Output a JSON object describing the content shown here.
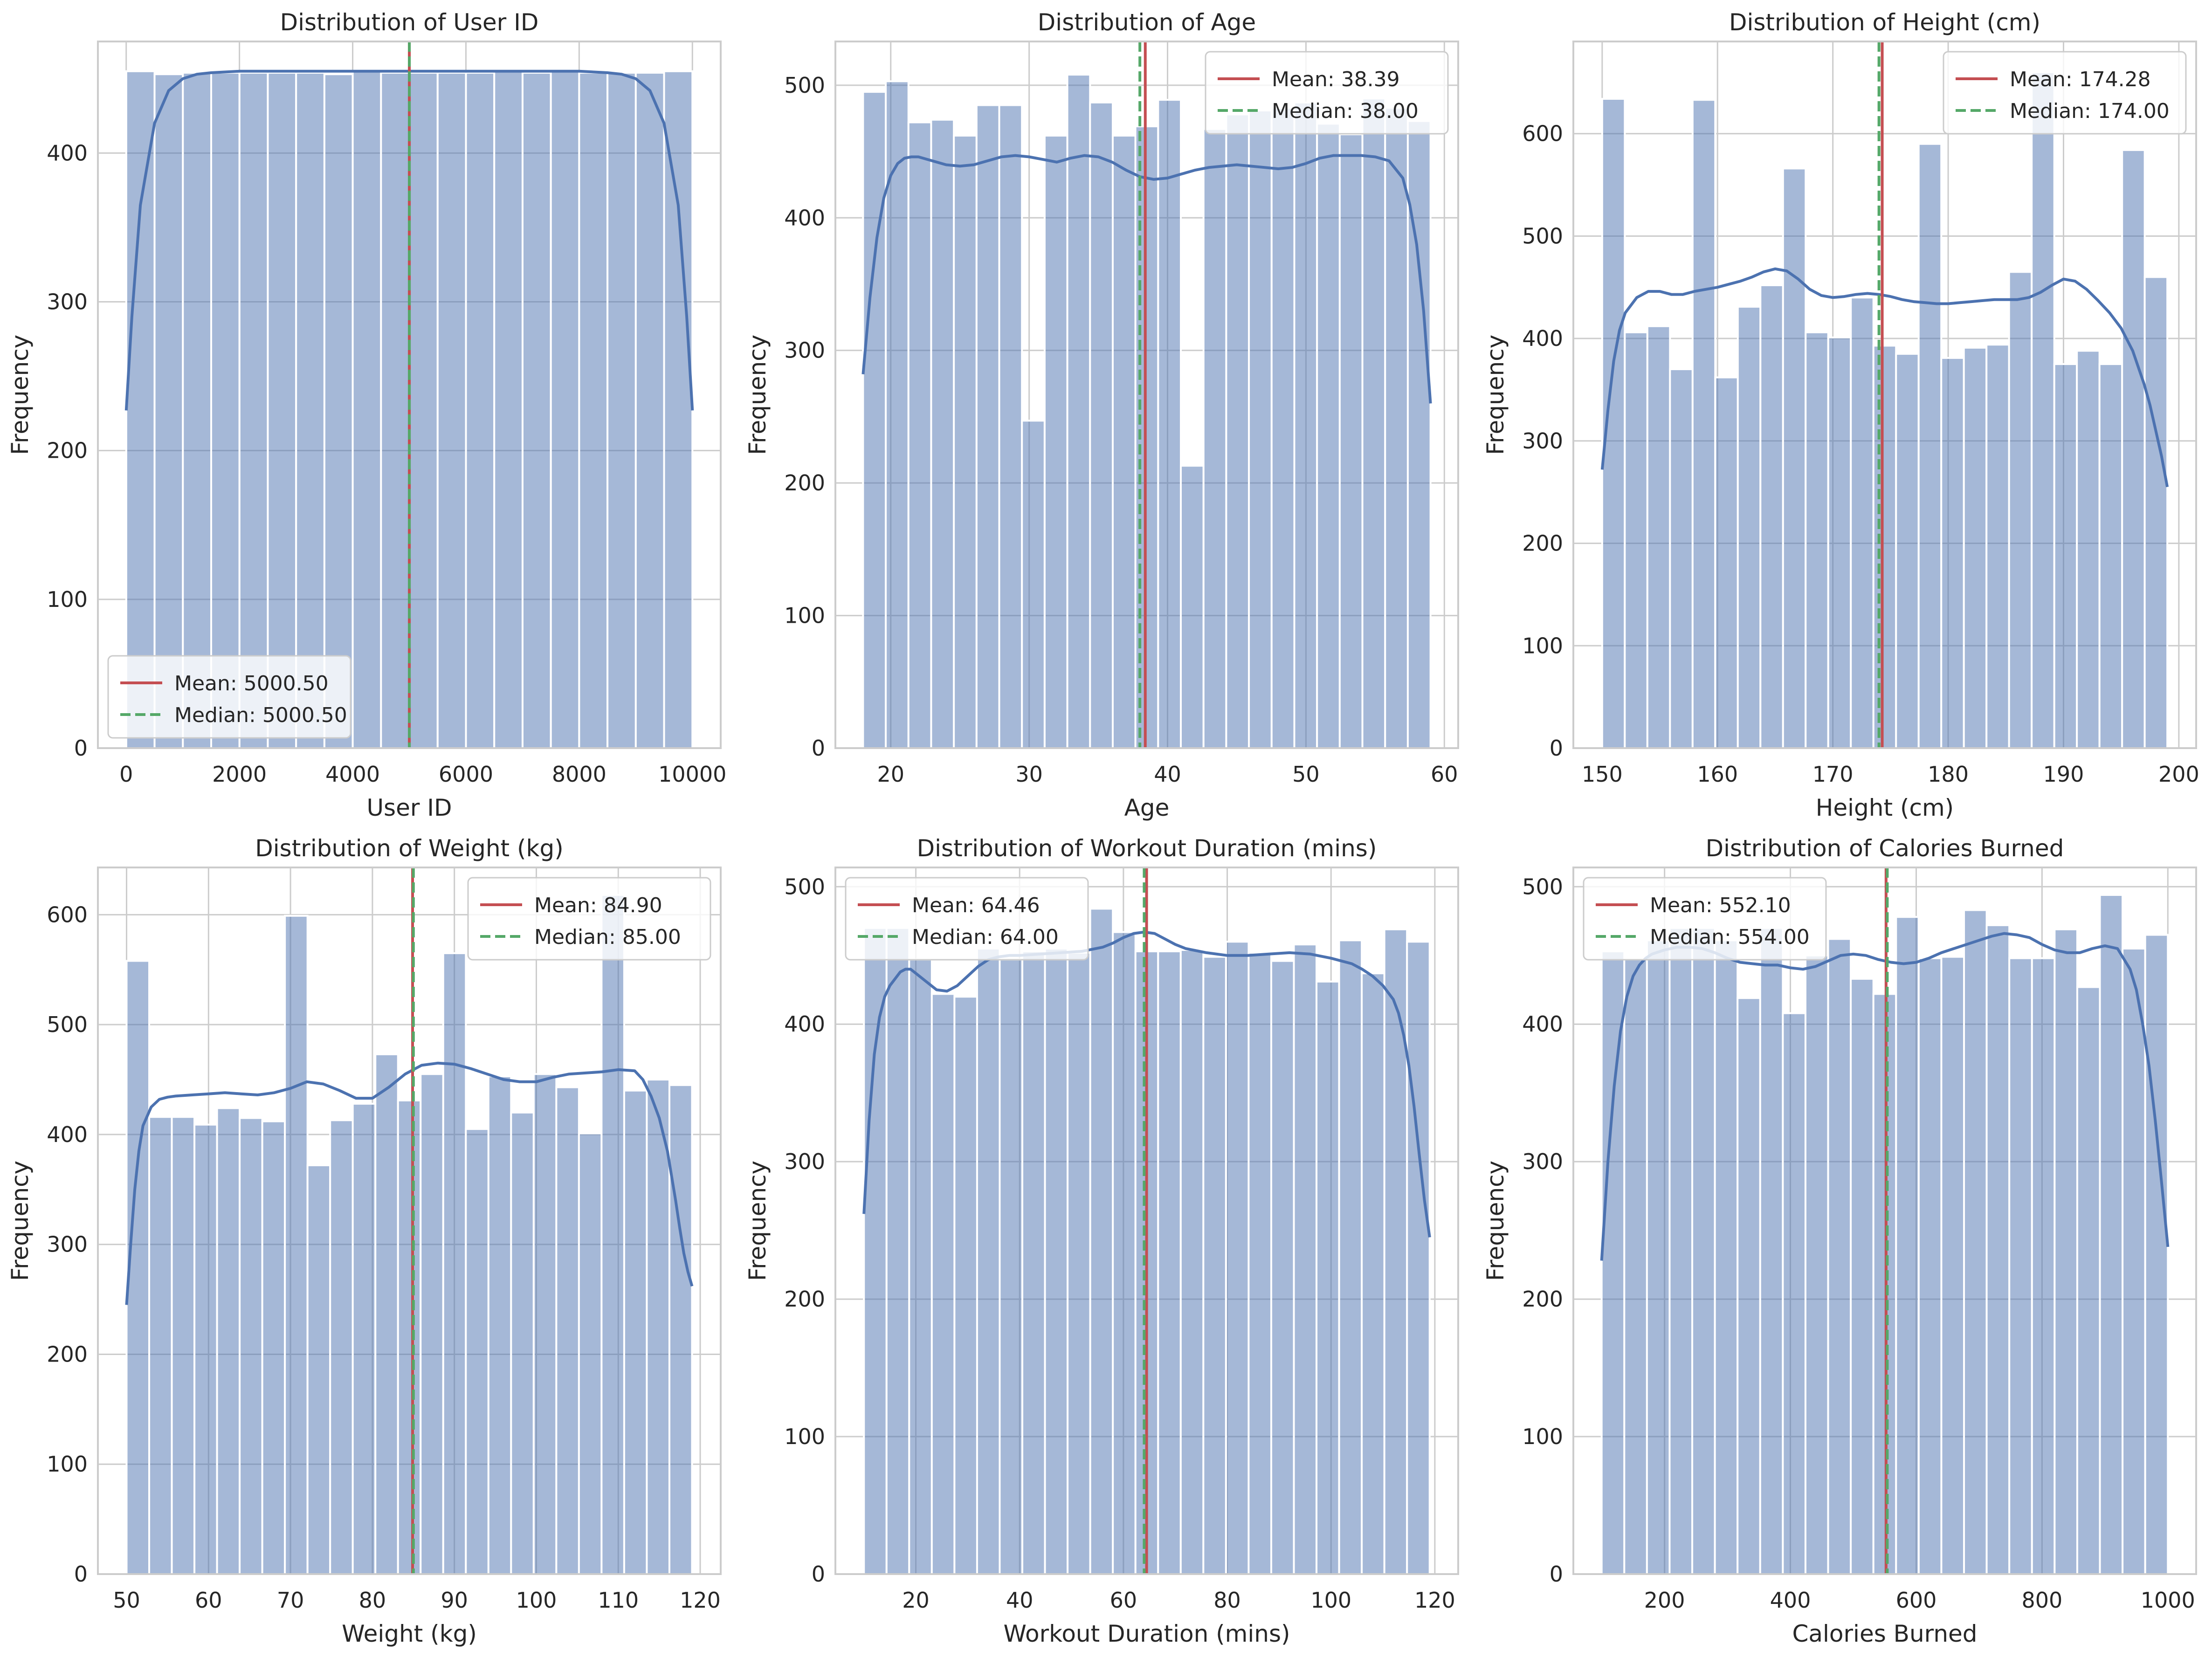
{
  "figure": {
    "background": "#ffffff"
  },
  "colors": {
    "bar": "#4c72b0",
    "kde": "#4c72b0",
    "mean": "#c44e52",
    "median": "#55a868",
    "grid": "#cccccc",
    "axes_edge": "#cccccc",
    "legend_edge": "#cccccc"
  },
  "chart_data": [
    {
      "type": "bar",
      "title": "Distribution of User ID",
      "xlabel": "User ID",
      "ylabel": "Frequency",
      "xlim": [
        -500,
        10500
      ],
      "ylim": [
        0,
        475
      ],
      "xticks": [
        0,
        2000,
        4000,
        6000,
        8000,
        10000
      ],
      "yticks": [
        0,
        100,
        200,
        300,
        400
      ],
      "bin_edges": [
        1,
        500.95,
        1000.9,
        1500.85,
        2000.8,
        2500.75,
        3000.7,
        3500.65,
        4000.6,
        4500.55,
        5000.5,
        5500.45,
        6000.4,
        6500.35,
        7000.3,
        7500.25,
        8000.2,
        8500.15,
        9000.1,
        9500.05,
        10000
      ],
      "values": [
        455,
        453,
        454,
        454,
        454,
        454,
        454,
        453,
        455,
        454,
        454,
        454,
        454,
        455,
        454,
        455,
        454,
        454,
        454,
        455
      ],
      "kde": {
        "x": [
          1,
          100,
          250,
          500,
          750,
          1000,
          1250,
          1500,
          2000,
          3000,
          4000,
          5000,
          6000,
          7000,
          8000,
          8500,
          8750,
          9000,
          9250,
          9500,
          9750,
          9900,
          10000
        ],
        "y": [
          227,
          290,
          365,
          420,
          442,
          450,
          453,
          454,
          455,
          455,
          455,
          455,
          455,
          455,
          455,
          454,
          453,
          450,
          442,
          420,
          365,
          290,
          227
        ]
      },
      "mean": 5000.5,
      "median": 5000.5,
      "legend": {
        "mean_label": "Mean: 5000.50",
        "median_label": "Median: 5000.50",
        "placement": "lower-left"
      },
      "grid": true
    },
    {
      "type": "bar",
      "title": "Distribution of Age",
      "xlabel": "Age",
      "ylabel": "Frequency",
      "xlim": [
        16,
        61
      ],
      "ylim": [
        0,
        533
      ],
      "xticks": [
        20,
        30,
        40,
        50,
        60
      ],
      "yticks": [
        0,
        100,
        200,
        300,
        400,
        500
      ],
      "bin_edges": [
        18,
        19.64,
        21.28,
        22.92,
        24.56,
        26.2,
        27.84,
        29.48,
        31.12,
        32.76,
        34.4,
        36.04,
        37.68,
        39.32,
        40.96,
        42.6,
        44.24,
        45.88,
        47.52,
        49.16,
        50.8,
        52.44,
        54.08,
        55.72,
        57.36,
        59
      ],
      "values": [
        495,
        503,
        472,
        474,
        462,
        485,
        485,
        247,
        462,
        508,
        487,
        462,
        469,
        489,
        213,
        467,
        478,
        481,
        483,
        487,
        471,
        463,
        490,
        483,
        473
      ],
      "kde": {
        "x": [
          18,
          18.5,
          19,
          19.5,
          20,
          20.5,
          21,
          21.5,
          22,
          23,
          24,
          25,
          26,
          27,
          28,
          29,
          30,
          31,
          32,
          33,
          34,
          35,
          36,
          37,
          38,
          39,
          40,
          41,
          42,
          43,
          44,
          45,
          46,
          47,
          48,
          49,
          50,
          51,
          52,
          53,
          54,
          55,
          56,
          57,
          57.5,
          58,
          58.5,
          59
        ],
        "y": [
          282,
          340,
          385,
          415,
          432,
          441,
          445,
          446,
          446,
          443,
          440,
          439,
          440,
          443,
          446,
          447,
          446,
          444,
          442,
          445,
          447,
          446,
          442,
          436,
          431,
          429,
          430,
          433,
          436,
          438,
          439,
          440,
          439,
          438,
          437,
          438,
          441,
          445,
          447,
          447,
          447,
          446,
          443,
          430,
          410,
          380,
          330,
          260
        ]
      },
      "mean": 38.39,
      "median": 38.0,
      "legend": {
        "mean_label": "Mean: 38.39",
        "median_label": "Median: 38.00",
        "placement": "top-right"
      },
      "grid": true
    },
    {
      "type": "bar",
      "title": "Distribution of Height (cm)",
      "xlabel": "Height (cm)",
      "ylabel": "Frequency",
      "xlim": [
        147.5,
        201.5
      ],
      "ylim": [
        0,
        690
      ],
      "xticks": [
        150,
        160,
        170,
        180,
        190,
        200
      ],
      "yticks": [
        0,
        100,
        200,
        300,
        400,
        500,
        600
      ],
      "bin_edges": [
        150,
        151.96,
        153.92,
        155.88,
        157.84,
        159.8,
        161.76,
        163.72,
        165.68,
        167.64,
        169.6,
        171.56,
        173.52,
        175.48,
        177.44,
        179.4,
        181.36,
        183.32,
        185.28,
        187.24,
        189.2,
        191.16,
        193.12,
        195.08,
        197.04,
        199
      ],
      "values": [
        634,
        406,
        412,
        370,
        633,
        362,
        431,
        452,
        566,
        406,
        401,
        440,
        393,
        385,
        590,
        381,
        391,
        394,
        465,
        660,
        375,
        388,
        375,
        584,
        460
      ],
      "kde": {
        "x": [
          150,
          150.5,
          151,
          151.5,
          152,
          153,
          154,
          155,
          156,
          157,
          158,
          159,
          160,
          161,
          162,
          163,
          164,
          165,
          166,
          167,
          168,
          169,
          170,
          171,
          172,
          173,
          174,
          175,
          176,
          177,
          178,
          179,
          180,
          181,
          182,
          183,
          184,
          185,
          186,
          187,
          188,
          189,
          190,
          191,
          192,
          193,
          194,
          195,
          196,
          197,
          197.5,
          198,
          198.5,
          199
        ],
        "y": [
          272,
          330,
          378,
          408,
          425,
          440,
          446,
          446,
          443,
          443,
          446,
          448,
          450,
          453,
          456,
          460,
          465,
          468,
          466,
          458,
          448,
          442,
          440,
          441,
          443,
          444,
          443,
          441,
          438,
          436,
          435,
          434,
          434,
          435,
          436,
          437,
          438,
          438,
          438,
          440,
          445,
          452,
          458,
          456,
          448,
          437,
          425,
          410,
          388,
          355,
          335,
          310,
          285,
          255
        ]
      },
      "mean": 174.28,
      "median": 174.0,
      "legend": {
        "mean_label": "Mean: 174.28",
        "median_label": "Median: 174.00",
        "placement": "top-right"
      },
      "grid": true
    },
    {
      "type": "bar",
      "title": "Distribution of Weight (kg)",
      "xlabel": "Weight (kg)",
      "ylabel": "Frequency",
      "xlim": [
        46.5,
        122.5
      ],
      "ylim": [
        0,
        643
      ],
      "xticks": [
        50,
        60,
        70,
        80,
        90,
        100,
        110,
        120
      ],
      "yticks": [
        0,
        100,
        200,
        300,
        400,
        500,
        600
      ],
      "bin_edges": [
        50,
        52.76,
        55.52,
        58.28,
        61.04,
        63.8,
        66.56,
        69.32,
        72.08,
        74.84,
        77.6,
        80.36,
        83.12,
        85.88,
        88.64,
        91.4,
        94.16,
        96.92,
        99.68,
        102.44,
        105.2,
        107.96,
        110.72,
        113.48,
        116.24,
        119
      ],
      "values": [
        558,
        416,
        416,
        409,
        424,
        415,
        412,
        599,
        372,
        413,
        428,
        473,
        431,
        455,
        565,
        405,
        453,
        420,
        455,
        443,
        401,
        618,
        440,
        450,
        445
      ],
      "kde": {
        "x": [
          50,
          50.5,
          51,
          51.5,
          52,
          53,
          54,
          55,
          56,
          58,
          60,
          62,
          64,
          66,
          68,
          70,
          72,
          74,
          76,
          78,
          80,
          82,
          84,
          86,
          88,
          90,
          92,
          94,
          96,
          98,
          100,
          102,
          104,
          106,
          108,
          110,
          112,
          113,
          114,
          115,
          116,
          117,
          117.5,
          118,
          118.5,
          119
        ],
        "y": [
          245,
          300,
          350,
          385,
          408,
          425,
          432,
          434,
          435,
          436,
          437,
          438,
          437,
          436,
          438,
          442,
          448,
          446,
          440,
          433,
          433,
          443,
          455,
          463,
          465,
          464,
          460,
          455,
          450,
          448,
          448,
          452,
          455,
          456,
          457,
          459,
          458,
          450,
          435,
          415,
          385,
          340,
          315,
          292,
          275,
          262
        ]
      },
      "mean": 84.9,
      "median": 85.0,
      "legend": {
        "mean_label": "Mean: 84.90",
        "median_label": "Median: 85.00",
        "placement": "top-right"
      },
      "grid": true
    },
    {
      "type": "bar",
      "title": "Distribution of Workout Duration (mins)",
      "xlabel": "Workout Duration (mins)",
      "ylabel": "Frequency",
      "xlim": [
        4.5,
        124.5
      ],
      "ylim": [
        0,
        514
      ],
      "xticks": [
        20,
        40,
        60,
        80,
        100,
        120
      ],
      "yticks": [
        0,
        100,
        200,
        300,
        400,
        500
      ],
      "bin_edges": [
        10,
        14.36,
        18.72,
        23.08,
        27.44,
        31.8,
        36.16,
        40.52,
        44.88,
        49.24,
        53.6,
        57.96,
        62.32,
        66.68,
        71.04,
        75.4,
        79.76,
        84.12,
        88.48,
        92.84,
        97.2,
        101.56,
        105.92,
        110.28,
        114.64,
        119
      ],
      "values": [
        470,
        470,
        447,
        422,
        420,
        455,
        447,
        453,
        455,
        452,
        484,
        467,
        453,
        453,
        454,
        449,
        460,
        452,
        446,
        458,
        431,
        461,
        437,
        469,
        460
      ],
      "kde": {
        "x": [
          10,
          11,
          12,
          13,
          14,
          15,
          16,
          17,
          18,
          19,
          20,
          22,
          24,
          26,
          28,
          30,
          32,
          34,
          36,
          38,
          40,
          44,
          48,
          52,
          56,
          58,
          60,
          62,
          64,
          66,
          68,
          70,
          72,
          76,
          80,
          84,
          88,
          92,
          96,
          100,
          104,
          106,
          108,
          110,
          112,
          113,
          114,
          115,
          116,
          117,
          118,
          119
        ],
        "y": [
          262,
          330,
          378,
          405,
          420,
          428,
          433,
          438,
          440,
          440,
          437,
          431,
          425,
          424,
          428,
          435,
          442,
          447,
          449,
          450,
          450,
          451,
          452,
          453,
          456,
          459,
          463,
          466,
          467,
          466,
          462,
          458,
          455,
          452,
          450,
          450,
          451,
          452,
          451,
          448,
          444,
          440,
          435,
          428,
          418,
          408,
          392,
          370,
          340,
          305,
          272,
          245
        ]
      },
      "mean": 64.46,
      "median": 64.0,
      "legend": {
        "mean_label": "Mean: 64.46",
        "median_label": "Median: 64.00",
        "placement": "top-left"
      },
      "grid": true
    },
    {
      "type": "bar",
      "title": "Distribution of Calories Burned",
      "xlabel": "Calories Burned",
      "ylabel": "Frequency",
      "xlim": [
        55,
        1045
      ],
      "ylim": [
        0,
        514
      ],
      "xticks": [
        200,
        400,
        600,
        800,
        1000
      ],
      "yticks": [
        0,
        100,
        200,
        300,
        400,
        500
      ],
      "bin_edges": [
        100,
        136,
        172,
        208,
        244,
        280,
        316,
        352,
        388,
        424,
        460,
        496,
        532,
        568,
        604,
        640,
        676,
        712,
        748,
        784,
        820,
        856,
        892,
        928,
        964,
        1000
      ],
      "values": [
        453,
        448,
        461,
        470,
        470,
        461,
        419,
        470,
        408,
        450,
        462,
        433,
        422,
        478,
        448,
        449,
        483,
        472,
        448,
        448,
        469,
        427,
        494,
        455,
        465
      ],
      "kde": {
        "x": [
          100,
          110,
          120,
          130,
          140,
          150,
          160,
          170,
          180,
          200,
          220,
          240,
          260,
          280,
          300,
          320,
          340,
          360,
          380,
          400,
          420,
          440,
          460,
          480,
          500,
          520,
          540,
          560,
          580,
          600,
          620,
          640,
          660,
          680,
          700,
          720,
          740,
          760,
          780,
          800,
          820,
          840,
          860,
          880,
          900,
          920,
          940,
          950,
          960,
          970,
          980,
          990,
          1000
        ],
        "y": [
          228,
          300,
          355,
          395,
          420,
          435,
          443,
          448,
          451,
          454,
          456,
          456,
          455,
          452,
          448,
          445,
          444,
          443,
          443,
          441,
          440,
          442,
          446,
          450,
          451,
          450,
          447,
          445,
          444,
          445,
          448,
          452,
          455,
          458,
          461,
          464,
          466,
          465,
          463,
          458,
          454,
          452,
          452,
          455,
          457,
          455,
          440,
          425,
          400,
          370,
          330,
          285,
          238
        ]
      },
      "mean": 552.1,
      "median": 554.0,
      "legend": {
        "mean_label": "Mean: 552.10",
        "median_label": "Median: 554.00",
        "placement": "top-left"
      },
      "grid": true
    }
  ]
}
